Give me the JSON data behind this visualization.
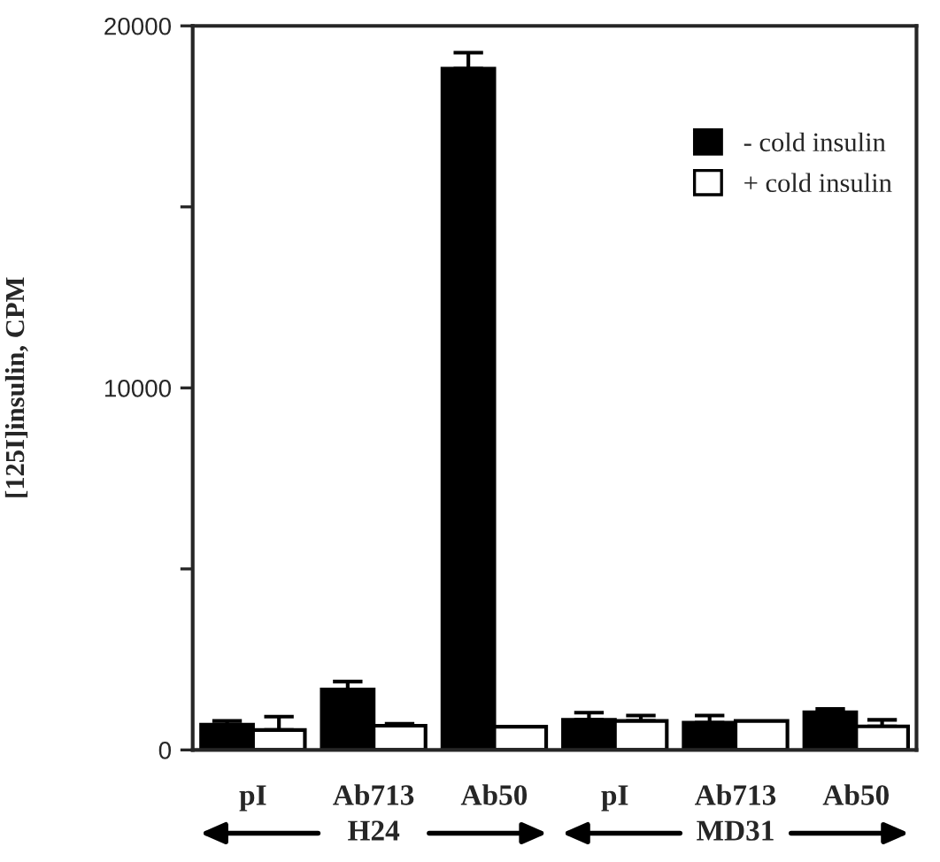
{
  "chart_data": {
    "type": "bar",
    "ylabel": "[125I]insulin, CPM",
    "categories": [
      "pI",
      "Ab713",
      "Ab50",
      "pI",
      "Ab713",
      "Ab50"
    ],
    "series": [
      {
        "name": "- cold insulin",
        "color": "#000000",
        "values": [
          700,
          1670,
          18820,
          830,
          750,
          1040
        ],
        "errors": [
          [
            700,
            800
          ],
          [
            1670,
            1890
          ],
          [
            18820,
            19260
          ],
          [
            830,
            1030
          ],
          [
            750,
            950
          ],
          [
            1040,
            1130
          ]
        ]
      },
      {
        "name": "+ cold insulin",
        "color": "#ffffff",
        "values": [
          550,
          670,
          640,
          800,
          800,
          650
        ],
        "errors": [
          [
            550,
            920
          ],
          [
            670,
            720
          ],
          null,
          [
            800,
            950
          ],
          null,
          [
            650,
            830
          ]
        ]
      }
    ],
    "ylim": [
      0,
      20000
    ],
    "yticks": [
      0,
      {
        "value": 5000,
        "label": null
      },
      10000,
      {
        "value": 15000,
        "label": null
      },
      20000
    ],
    "legend": "top right",
    "annotations": [
      "H24",
      "MD31"
    ]
  }
}
